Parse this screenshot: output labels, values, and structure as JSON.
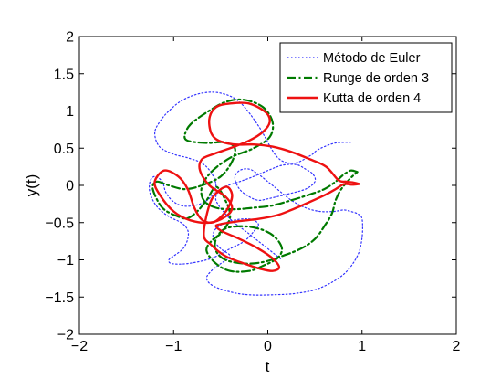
{
  "chart_data": {
    "type": "line",
    "title": "",
    "xlabel": "t",
    "ylabel": "y(t)",
    "xlim": [
      -2,
      2
    ],
    "ylim": [
      -2,
      2
    ],
    "xticks": [
      -2,
      -1,
      0,
      1,
      2
    ],
    "xtick_labels": [
      "−2",
      "−1",
      "0",
      "1",
      "2"
    ],
    "yticks": [
      -2,
      -1.5,
      -1,
      -0.5,
      0,
      0.5,
      1,
      1.5,
      2
    ],
    "ytick_labels": [
      "−2",
      "−1.5",
      "−1",
      "−0.5",
      "0",
      "0.5",
      "1",
      "1.5",
      "2"
    ],
    "grid": false,
    "legend_position": "top-right",
    "series": [
      {
        "name": "Método de Euler",
        "color": "#3333ff",
        "style": "dotted",
        "x": [
          0.88,
          0.72,
          0.6,
          0.52,
          0.45,
          0.28,
          0.1,
          -0.1,
          -0.3,
          -0.5,
          -0.7,
          -0.9,
          -1.05,
          -1.15,
          -1.2,
          -1.15,
          -1.0,
          -0.85,
          -0.7,
          -0.6,
          -0.55,
          -0.6,
          -0.72,
          -0.88,
          -1.0,
          -1.08,
          -1.12,
          -1.2,
          -1.25,
          -1.25,
          -1.18,
          -1.05,
          -0.92,
          -0.85,
          -0.85,
          -0.9,
          -1.0,
          -1.05,
          -1.02,
          -0.85,
          -0.6,
          -0.4,
          -0.25,
          -0.15,
          -0.1,
          -0.2,
          -0.4,
          -0.55,
          -0.58,
          -0.5,
          -0.4,
          -0.5,
          -0.6,
          -0.65,
          -0.58,
          -0.4,
          -0.2,
          0.05,
          0.3,
          0.55,
          0.8,
          0.95,
          1.0,
          1.0,
          0.95,
          0.88,
          0.85,
          0.8,
          0.7,
          0.55,
          0.4,
          0.25,
          0.1,
          0.0,
          -0.1,
          -0.2,
          -0.3,
          -0.35,
          -0.3,
          -0.2,
          -0.1,
          0.0,
          0.2,
          0.4,
          0.5,
          0.48,
          0.4,
          0.3,
          0.15,
          0.0,
          -0.15,
          -0.3,
          -0.42,
          -0.5,
          -0.55,
          -0.4,
          -0.2,
          0.0,
          0.15
        ],
        "y": [
          0.58,
          0.57,
          0.52,
          0.47,
          0.4,
          0.3,
          0.38,
          0.8,
          1.12,
          1.24,
          1.24,
          1.15,
          1.0,
          0.85,
          0.7,
          0.52,
          0.42,
          0.37,
          0.3,
          0.17,
          0.0,
          -0.15,
          -0.25,
          -0.28,
          -0.22,
          -0.1,
          0.05,
          0.12,
          0.05,
          -0.1,
          -0.28,
          -0.42,
          -0.5,
          -0.6,
          -0.72,
          -0.85,
          -0.95,
          -1.0,
          -1.05,
          -1.05,
          -0.98,
          -0.85,
          -0.75,
          -0.62,
          -0.52,
          -0.45,
          -0.48,
          -0.58,
          -0.72,
          -0.85,
          -0.95,
          -1.05,
          -1.15,
          -1.25,
          -1.35,
          -1.43,
          -1.47,
          -1.47,
          -1.45,
          -1.38,
          -1.2,
          -0.95,
          -0.7,
          -0.45,
          -0.38,
          -0.35,
          -0.34,
          -0.33,
          -0.35,
          -0.35,
          -0.3,
          -0.2,
          -0.05,
          0.05,
          0.15,
          0.22,
          0.2,
          0.1,
          -0.05,
          -0.15,
          -0.2,
          -0.18,
          -0.12,
          -0.05,
          0.05,
          0.15,
          0.22,
          0.28,
          0.27,
          0.2,
          0.12,
          0.05,
          0.0,
          -0.05,
          -0.2,
          -0.45,
          -0.65,
          -0.85,
          -1.0
        ]
      },
      {
        "name": "Runge de orden 3",
        "color": "#007a00",
        "style": "dash-dot",
        "x": [
          0.95,
          0.88,
          0.8,
          0.72,
          0.6,
          0.45,
          0.25,
          0.05,
          -0.15,
          -0.35,
          -0.55,
          -0.68,
          -0.7,
          -0.6,
          -0.4,
          -0.15,
          0.02,
          0.05,
          -0.05,
          -0.25,
          -0.45,
          -0.65,
          -0.82,
          -0.88,
          -0.85,
          -0.65,
          -0.45,
          -0.35,
          -0.38,
          -0.5,
          -0.7,
          -0.88,
          -1.05,
          -1.18,
          -1.22,
          -1.12,
          -0.95,
          -0.85,
          -0.75,
          -0.65,
          -0.55,
          -0.45,
          -0.4,
          -0.48,
          -0.6,
          -0.65,
          -0.55,
          -0.4,
          -0.2,
          -0.05,
          0.1,
          0.15,
          0.08,
          -0.05,
          -0.25,
          -0.45,
          -0.55,
          -0.55,
          -0.45,
          -0.25,
          -0.05,
          0.15,
          0.35,
          0.5,
          0.6,
          0.68,
          0.72,
          0.78,
          0.88,
          0.95
        ],
        "y": [
          0.18,
          0.2,
          0.14,
          0.05,
          -0.05,
          -0.12,
          -0.2,
          -0.27,
          -0.3,
          -0.32,
          -0.3,
          -0.2,
          -0.02,
          0.18,
          0.37,
          0.5,
          0.65,
          0.85,
          1.05,
          1.15,
          1.12,
          0.98,
          0.82,
          0.68,
          0.6,
          0.57,
          0.58,
          0.5,
          0.32,
          0.12,
          0.0,
          -0.05,
          0.0,
          0.05,
          -0.05,
          -0.3,
          -0.42,
          -0.44,
          -0.35,
          -0.2,
          -0.02,
          -0.2,
          -0.42,
          -0.62,
          -0.75,
          -0.88,
          -1.05,
          -1.15,
          -1.15,
          -1.08,
          -0.98,
          -0.85,
          -0.7,
          -0.6,
          -0.55,
          -0.58,
          -0.72,
          -0.88,
          -1.0,
          -1.05,
          -1.03,
          -0.95,
          -0.85,
          -0.72,
          -0.55,
          -0.38,
          -0.2,
          -0.05,
          0.1,
          0.18
        ]
      },
      {
        "name": "Kutta de orden 4",
        "color": "#ee1111",
        "style": "solid",
        "x": [
          0.97,
          0.9,
          0.83,
          0.75,
          0.62,
          0.45,
          0.25,
          0.05,
          -0.15,
          -0.35,
          -0.52,
          -0.6,
          -0.62,
          -0.55,
          -0.4,
          -0.2,
          -0.02,
          0.02,
          -0.05,
          -0.2,
          -0.4,
          -0.58,
          -0.7,
          -0.72,
          -0.62,
          -0.45,
          -0.38,
          -0.45,
          -0.62,
          -0.82,
          -1.0,
          -1.15,
          -1.2,
          -1.1,
          -0.95,
          -0.85,
          -0.78,
          -0.7,
          -0.6,
          -0.52,
          -0.42,
          -0.38,
          -0.45,
          -0.6,
          -0.68,
          -0.6,
          -0.45,
          -0.25,
          -0.08,
          0.05,
          0.12,
          0.05,
          -0.1,
          -0.3,
          -0.48,
          -0.55,
          -0.5,
          -0.3,
          -0.1,
          0.1,
          0.25,
          0.45,
          0.62,
          0.72,
          0.78,
          0.82,
          0.9,
          0.97
        ],
        "y": [
          0.02,
          0.04,
          0.05,
          0.07,
          0.25,
          0.35,
          0.45,
          0.52,
          0.55,
          0.55,
          0.6,
          0.7,
          0.9,
          1.05,
          1.1,
          1.1,
          0.98,
          0.85,
          0.72,
          0.6,
          0.5,
          0.42,
          0.35,
          0.2,
          0.0,
          -0.15,
          -0.3,
          -0.42,
          -0.5,
          -0.47,
          -0.35,
          -0.12,
          0.05,
          0.2,
          0.12,
          -0.05,
          -0.3,
          -0.46,
          -0.5,
          -0.45,
          -0.3,
          -0.12,
          -0.02,
          -0.2,
          -0.65,
          -0.8,
          -0.95,
          -1.05,
          -1.12,
          -1.15,
          -1.1,
          -0.98,
          -0.85,
          -0.72,
          -0.62,
          -0.55,
          -0.52,
          -0.48,
          -0.45,
          -0.4,
          -0.33,
          -0.22,
          -0.12,
          -0.05,
          0.0,
          0.02,
          0.01,
          0.02
        ]
      }
    ]
  }
}
